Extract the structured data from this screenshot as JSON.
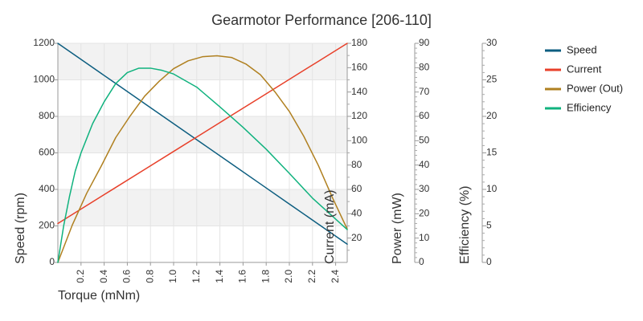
{
  "chart_data": {
    "type": "line",
    "title": "Gearmotor Performance [206-110]",
    "xlabel": "Torque (mNm)",
    "xlim": [
      0,
      2.5
    ],
    "x_ticks": [
      0.2,
      0.4,
      0.6,
      0.8,
      1.0,
      1.2,
      1.4,
      1.6,
      1.8,
      2.0,
      2.2,
      2.4
    ],
    "x_tick_labels": [
      "0.2",
      "0.4",
      "0.6",
      "0.8",
      "1.0",
      "1.2",
      "1.4",
      "1.6",
      "1.8",
      "2.0",
      "2.2",
      "2.4"
    ],
    "grid": true,
    "axes": [
      {
        "id": "speed",
        "label": "Speed (rpm)",
        "range": [
          0,
          1200
        ],
        "ticks": [
          0,
          200,
          400,
          600,
          800,
          1000,
          1200
        ],
        "minor_ticks": [],
        "position": "left"
      },
      {
        "id": "current",
        "label": "Current (mA)",
        "range": [
          0,
          180
        ],
        "ticks": [
          20,
          40,
          60,
          80,
          100,
          120,
          140,
          160,
          180
        ],
        "minor_ticks": [
          10,
          30,
          50,
          70,
          90,
          110,
          130,
          150,
          170
        ],
        "position": "right-1"
      },
      {
        "id": "power",
        "label": "Power (mW)",
        "range": [
          0,
          90
        ],
        "ticks": [
          0,
          10,
          20,
          30,
          40,
          50,
          60,
          70,
          80,
          90
        ],
        "minor_ticks": [
          2,
          4,
          6,
          8,
          12,
          14,
          16,
          18,
          22,
          24,
          26,
          28,
          32,
          34,
          36,
          38,
          42,
          44,
          46,
          48,
          52,
          54,
          56,
          58,
          62,
          64,
          66,
          68,
          72,
          74,
          76,
          78,
          82,
          84,
          86,
          88
        ],
        "position": "right-2"
      },
      {
        "id": "efficiency",
        "label": "Efficiency (%)",
        "range": [
          0,
          30
        ],
        "ticks": [
          0,
          5,
          10,
          15,
          20,
          25,
          30
        ],
        "minor_ticks": [
          1,
          2,
          3,
          4,
          6,
          7,
          8,
          9,
          11,
          12,
          13,
          14,
          16,
          17,
          18,
          19,
          21,
          22,
          23,
          24,
          26,
          27,
          28,
          29
        ],
        "position": "right-3"
      }
    ],
    "series": [
      {
        "name": "Speed",
        "axis": "speed",
        "color": "#0d5e80",
        "x": [
          0,
          0.25,
          0.5,
          0.75,
          1.0,
          1.25,
          1.5,
          1.75,
          2.0,
          2.25,
          2.5
        ],
        "values": [
          1200,
          1090,
          980,
          870,
          760,
          650,
          540,
          430,
          320,
          210,
          100
        ]
      },
      {
        "name": "Current",
        "axis": "current",
        "color": "#e8402a",
        "x": [
          0,
          0.25,
          0.5,
          0.75,
          1.0,
          1.25,
          1.5,
          1.75,
          2.0,
          2.25,
          2.5
        ],
        "values": [
          32,
          46.8,
          61.6,
          76.4,
          91.2,
          106,
          120.8,
          135.6,
          150.4,
          165.2,
          180
        ]
      },
      {
        "name": "Power (Out)",
        "axis": "power",
        "color": "#b08020",
        "x": [
          0,
          0.125,
          0.25,
          0.375,
          0.5,
          0.625,
          0.75,
          0.875,
          1.0,
          1.125,
          1.25,
          1.375,
          1.5,
          1.625,
          1.75,
          1.875,
          2.0,
          2.125,
          2.25,
          2.375,
          2.5
        ],
        "values": [
          0,
          15.4,
          28.5,
          39.6,
          51.3,
          60.2,
          68.3,
          74.4,
          79.6,
          82.8,
          84.5,
          84.9,
          84.2,
          81.5,
          77.1,
          70.1,
          62.0,
          51.8,
          39.9,
          26.3,
          13.7
        ]
      },
      {
        "name": "Efficiency",
        "axis": "efficiency",
        "color": "#10b27e",
        "x": [
          0,
          0.05,
          0.1,
          0.15,
          0.2,
          0.25,
          0.3,
          0.4,
          0.5,
          0.6,
          0.7,
          0.8,
          0.9,
          1.0,
          1.2,
          1.4,
          1.6,
          1.8,
          2.0,
          2.2,
          2.5
        ],
        "values": [
          0,
          5.0,
          9.0,
          12.5,
          15.0,
          17.0,
          19.0,
          22.0,
          24.5,
          26.0,
          26.6,
          26.6,
          26.3,
          25.8,
          24.0,
          21.3,
          18.5,
          15.5,
          12.2,
          8.8,
          4.5
        ]
      }
    ],
    "legend": {
      "placement": "right",
      "entries": [
        "Speed",
        "Current",
        "Power (Out)",
        "Efficiency"
      ]
    }
  }
}
